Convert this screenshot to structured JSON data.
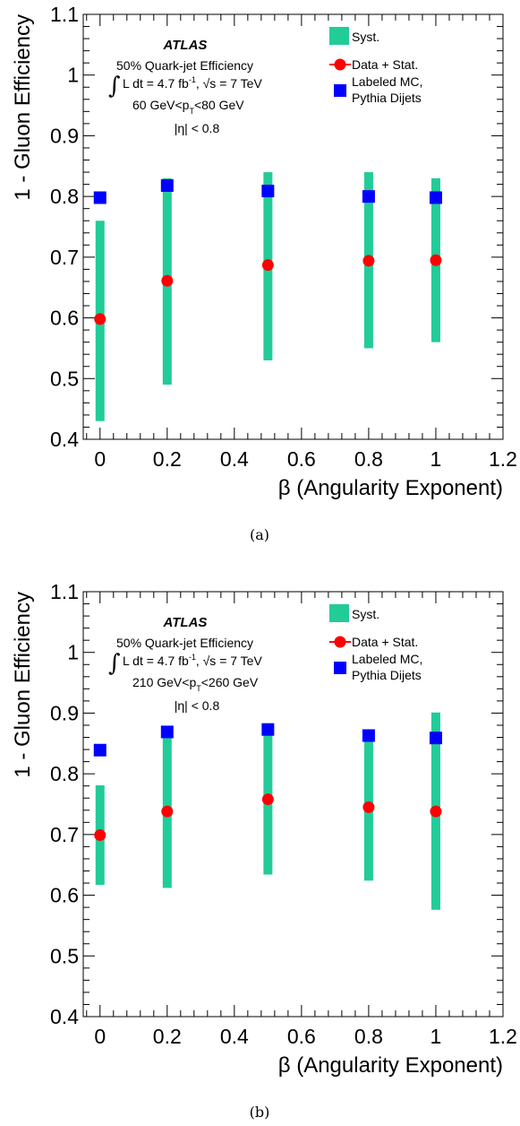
{
  "colors": {
    "syst": "#22cc99",
    "data": "#ff0000",
    "mc": "#0000ff",
    "axis": "#000000"
  },
  "chart_data": [
    {
      "type": "scatter",
      "caption": "(a)",
      "xlabel": "β (Angularity Exponent)",
      "ylabel": "1 - Gluon Efficiency",
      "xlim": [
        -0.05,
        1.2
      ],
      "ylim": [
        0.4,
        1.1
      ],
      "x_ticks": [
        "0",
        "0.2",
        "0.4",
        "0.6",
        "0.8",
        "1",
        "1.2"
      ],
      "y_ticks": [
        "0.4",
        "0.5",
        "0.6",
        "0.7",
        "0.8",
        "0.9",
        "1",
        "1.1"
      ],
      "info": {
        "atlas": "ATLAS",
        "line1": "50% Quark-jet Efficiency",
        "lumi_main": "L dt = 4.7 fb",
        "lumi_exp": "-1",
        "sqrt_s": ", √s = 7 TeV",
        "pt_left": "60 GeV<p",
        "pt_sub": "T",
        "pt_right": "<80 GeV",
        "eta": "|η| < 0.8"
      },
      "legend": {
        "syst": "Syst.",
        "data": "Data + Stat.",
        "mc_line1": "Labeled MC,",
        "mc_line2": "Pythia Dijets"
      },
      "series": [
        {
          "name": "Syst.",
          "x": [
            0,
            0.2,
            0.5,
            0.8,
            1.0
          ],
          "low": [
            0.43,
            0.49,
            0.53,
            0.55,
            0.56
          ],
          "high": [
            0.76,
            0.83,
            0.84,
            0.84,
            0.83
          ]
        },
        {
          "name": "Data + Stat.",
          "x": [
            0,
            0.2,
            0.5,
            0.8,
            1.0
          ],
          "y": [
            0.598,
            0.661,
            0.687,
            0.694,
            0.695
          ]
        },
        {
          "name": "Labeled MC, Pythia Dijets",
          "x": [
            0,
            0.2,
            0.5,
            0.8,
            1.0
          ],
          "y": [
            0.798,
            0.818,
            0.809,
            0.8,
            0.798
          ]
        }
      ]
    },
    {
      "type": "scatter",
      "caption": "(b)",
      "xlabel": "β (Angularity Exponent)",
      "ylabel": "1 - Gluon Efficiency",
      "xlim": [
        -0.05,
        1.2
      ],
      "ylim": [
        0.4,
        1.1
      ],
      "x_ticks": [
        "0",
        "0.2",
        "0.4",
        "0.6",
        "0.8",
        "1",
        "1.2"
      ],
      "y_ticks": [
        "0.4",
        "0.5",
        "0.6",
        "0.7",
        "0.8",
        "0.9",
        "1",
        "1.1"
      ],
      "info": {
        "atlas": "ATLAS",
        "line1": "50% Quark-jet Efficiency",
        "lumi_main": "L dt = 4.7 fb",
        "lumi_exp": "-1",
        "sqrt_s": ", √s = 7 TeV",
        "pt_left": "210 GeV<p",
        "pt_sub": "T",
        "pt_right": "<260 GeV",
        "eta": "|η| < 0.8"
      },
      "legend": {
        "syst": "Syst.",
        "data": "Data + Stat.",
        "mc_line1": "Labeled MC,",
        "mc_line2": "Pythia Dijets"
      },
      "series": [
        {
          "name": "Syst.",
          "x": [
            0,
            0.2,
            0.5,
            0.8,
            1.0
          ],
          "low": [
            0.617,
            0.612,
            0.634,
            0.624,
            0.576
          ],
          "high": [
            0.781,
            0.87,
            0.873,
            0.866,
            0.901
          ]
        },
        {
          "name": "Data + Stat.",
          "x": [
            0,
            0.2,
            0.5,
            0.8,
            1.0
          ],
          "y": [
            0.699,
            0.738,
            0.758,
            0.745,
            0.738
          ]
        },
        {
          "name": "Labeled MC, Pythia Dijets",
          "x": [
            0,
            0.2,
            0.5,
            0.8,
            1.0
          ],
          "y": [
            0.839,
            0.869,
            0.873,
            0.863,
            0.859
          ]
        }
      ]
    }
  ]
}
